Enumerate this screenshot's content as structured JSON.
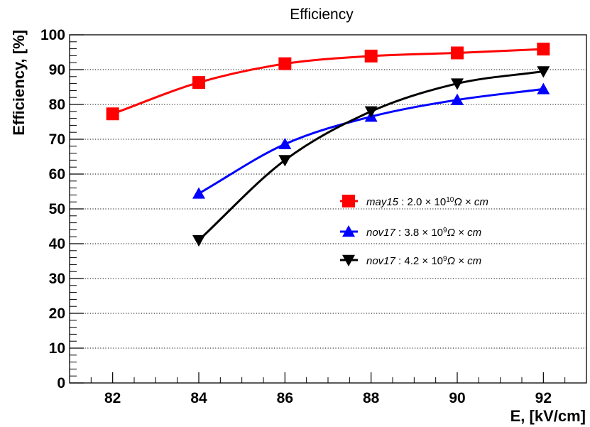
{
  "chart_data": {
    "type": "line",
    "title": "Efficiency",
    "xlabel": "E, [kV/cm]",
    "ylabel": "Efficiency, [%]",
    "xlim": [
      81,
      93
    ],
    "ylim": [
      0,
      100
    ],
    "x_ticks": [
      "82",
      "84",
      "86",
      "88",
      "90",
      "92"
    ],
    "y_ticks": [
      "0",
      "10",
      "20",
      "30",
      "40",
      "50",
      "60",
      "70",
      "80",
      "90",
      "100"
    ],
    "grid": "horizontal dotted",
    "legend_position": "center-right",
    "series": [
      {
        "legend": {
          "run": "may15",
          "resistivity": "2.0",
          "mantissa_exp": "10",
          "rest": "Ω × cm"
        },
        "color": "#ff0000",
        "marker": "square",
        "x": [
          82,
          84,
          86,
          88,
          90,
          92
        ],
        "y": [
          77.3,
          86.3,
          91.7,
          93.9,
          94.8,
          95.9
        ]
      },
      {
        "legend": {
          "run": "nov17",
          "resistivity": "3.8",
          "mantissa_exp": "9",
          "rest": "Ω × cm"
        },
        "color": "#0000ff",
        "marker": "triangle-up",
        "x": [
          84,
          86,
          88,
          90,
          92
        ],
        "y": [
          54.4,
          68.6,
          76.5,
          81.3,
          84.4
        ]
      },
      {
        "legend": {
          "run": "nov17",
          "resistivity": "4.2",
          "mantissa_exp": "9",
          "rest": "Ω × cm"
        },
        "color": "#000000",
        "marker": "triangle-down",
        "x": [
          84,
          86,
          88,
          90,
          92
        ],
        "y": [
          41.0,
          64.0,
          78.0,
          86.0,
          89.5
        ]
      }
    ]
  }
}
